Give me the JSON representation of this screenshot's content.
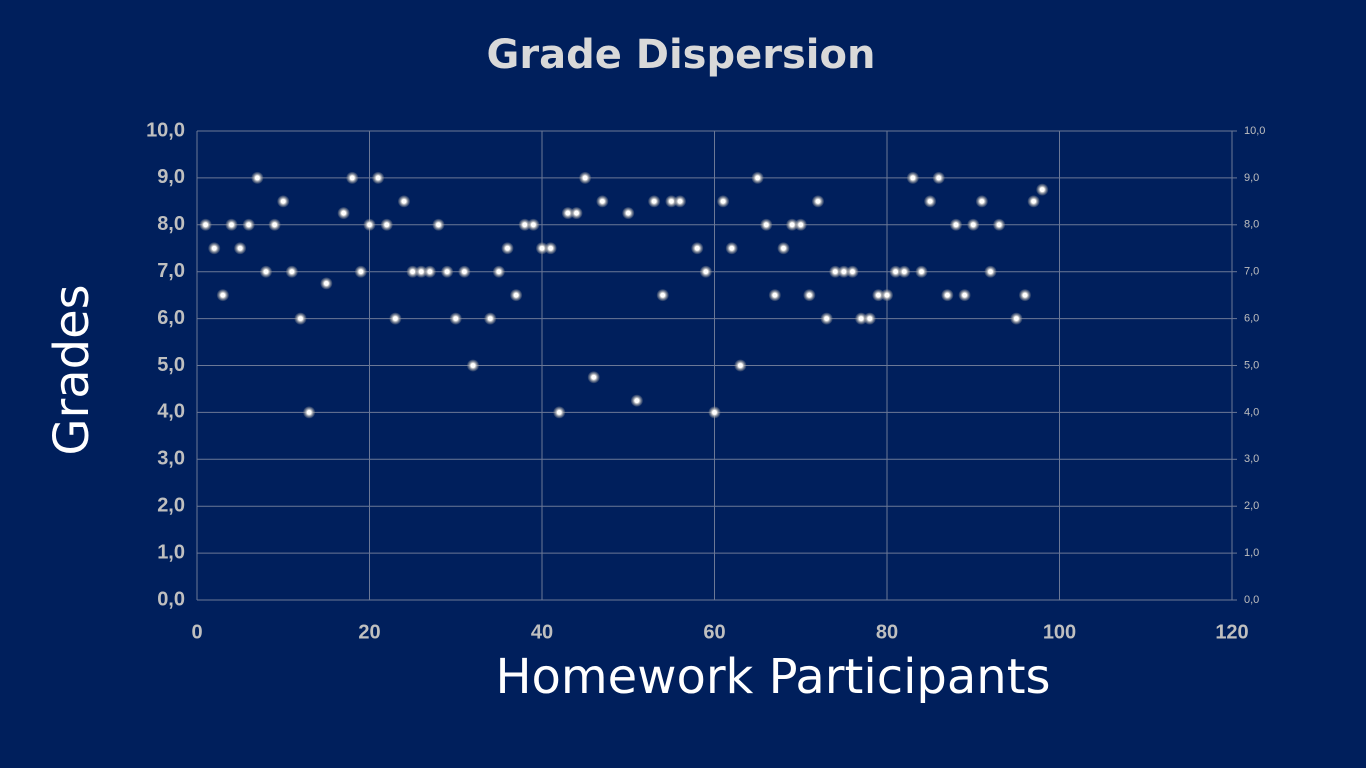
{
  "chart_data": {
    "type": "scatter",
    "title": "Grade Dispersion",
    "x_label": "Homework Participants",
    "y_label": "Grades",
    "x": [
      1,
      2,
      3,
      4,
      5,
      6,
      7,
      8,
      9,
      10,
      11,
      12,
      13,
      15,
      17,
      18,
      19,
      20,
      21,
      22,
      23,
      24,
      25,
      26,
      27,
      28,
      29,
      30,
      31,
      32,
      34,
      35,
      36,
      37,
      38,
      39,
      40,
      41,
      42,
      43,
      44,
      45,
      46,
      47,
      50,
      51,
      53,
      54,
      55,
      56,
      58,
      59,
      60,
      61,
      62,
      63,
      65,
      66,
      67,
      68,
      69,
      70,
      71,
      72,
      73,
      74,
      75,
      76,
      77,
      78,
      79,
      80,
      81,
      82,
      83,
      84,
      85,
      86,
      87,
      88,
      89,
      90,
      91,
      92,
      93,
      95,
      96,
      97,
      98
    ],
    "values": [
      8,
      7.5,
      6.5,
      8,
      7.5,
      8,
      9,
      7,
      8,
      8.5,
      7,
      6,
      4,
      6.75,
      8.25,
      9,
      7,
      8,
      9,
      8,
      6,
      8.5,
      7,
      7,
      7,
      8,
      7,
      6,
      7,
      5,
      6,
      7,
      7.5,
      6.5,
      8,
      8,
      7.5,
      7.5,
      4,
      8.25,
      8.25,
      9,
      4.75,
      8.5,
      8.25,
      4.25,
      8.5,
      6.5,
      8.5,
      8.5,
      7.5,
      7,
      4,
      8.5,
      7.5,
      5,
      9,
      8,
      6.5,
      7.5,
      8,
      8,
      6.5,
      8.5,
      6,
      7,
      7,
      7,
      6,
      6,
      6.5,
      6.5,
      7,
      7,
      9,
      7,
      8.5,
      9,
      6.5,
      8,
      6.5,
      8,
      8.5,
      7,
      8,
      6,
      6.5,
      8.5,
      8.75
    ],
    "color": "#ffffff",
    "xlim": [
      0,
      120
    ],
    "xticks": [
      0,
      20,
      40,
      60,
      80,
      100,
      120
    ],
    "ylim": [
      0,
      10
    ],
    "yticks": [
      {
        "value": 0,
        "label": "0,0"
      },
      {
        "value": 1,
        "label": "1,0"
      },
      {
        "value": 2,
        "label": "2,0"
      },
      {
        "value": 3,
        "label": "3,0"
      },
      {
        "value": 4,
        "label": "4,0"
      },
      {
        "value": 5,
        "label": "5,0"
      },
      {
        "value": 6,
        "label": "6,0"
      },
      {
        "value": 7,
        "label": "7,0"
      },
      {
        "value": 8,
        "label": "8,0"
      },
      {
        "value": 9,
        "label": "9,0"
      },
      {
        "value": 10,
        "label": "10,0"
      }
    ],
    "y2lim": [
      0,
      10
    ],
    "y2ticks": [
      {
        "value": 0,
        "label": "0,0"
      },
      {
        "value": 1,
        "label": "1,0"
      },
      {
        "value": 2,
        "label": "2,0"
      },
      {
        "value": 3,
        "label": "3,0"
      },
      {
        "value": 4,
        "label": "4,0"
      },
      {
        "value": 5,
        "label": "5,0"
      },
      {
        "value": 6,
        "label": "6,0"
      },
      {
        "value": 7,
        "label": "7,0"
      },
      {
        "value": 8,
        "label": "8,0"
      },
      {
        "value": 9,
        "label": "9,0"
      },
      {
        "value": 10,
        "label": "10,0"
      }
    ],
    "grid": true
  }
}
